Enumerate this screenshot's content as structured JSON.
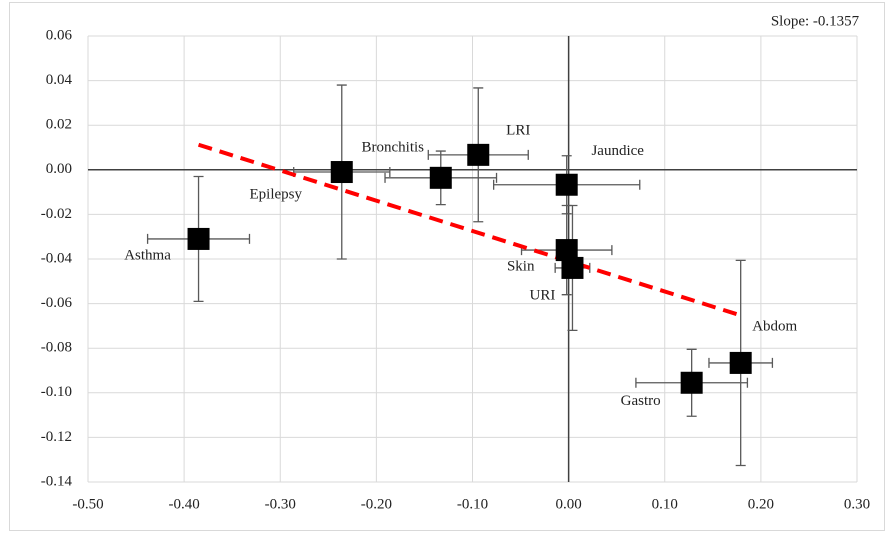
{
  "chart_data": {
    "type": "scatter",
    "annotation": "Slope: -0.1357",
    "trendline": {
      "slope": -0.1357,
      "intercept": -0.041,
      "x": [
        -0.385,
        0.18
      ],
      "color": "#ff0000"
    },
    "series": [
      {
        "color": "#000000",
        "labels": [
          "Asthma",
          "Epilepsy",
          "Bronchitis",
          "LRI",
          "Jaundice",
          "Skin",
          "URI",
          "Abdom",
          "Gastro"
        ],
        "x": [
          -0.385,
          -0.236,
          -0.133,
          -0.094,
          -0.002,
          -0.002,
          0.004,
          0.179,
          0.128
        ],
        "values": [
          -0.031,
          -0.001,
          -0.0036,
          0.0067,
          -0.0067,
          -0.036,
          -0.044,
          -0.0866,
          -0.0955
        ],
        "xerr": [
          0.053,
          0.05,
          0.058,
          0.052,
          0.076,
          0.047,
          0.018,
          0.033,
          0.058
        ],
        "yerr": [
          0.028,
          0.039,
          0.012,
          0.03,
          0.013,
          0.02,
          0.028,
          0.046,
          0.015
        ]
      }
    ],
    "xlim": [
      -0.5,
      0.3
    ],
    "ylim": [
      -0.14,
      0.06
    ],
    "xticks": [
      {
        "value": -0.5,
        "label": "-0.50"
      },
      {
        "value": -0.4,
        "label": "-0.40"
      },
      {
        "value": -0.3,
        "label": "-0.30"
      },
      {
        "value": -0.2,
        "label": "-0.20"
      },
      {
        "value": -0.1,
        "label": "-0.10"
      },
      {
        "value": 0,
        "label": "0.00"
      },
      {
        "value": 0.1,
        "label": "0.10"
      },
      {
        "value": 0.2,
        "label": "0.20"
      },
      {
        "value": 0.3,
        "label": "0.30"
      }
    ],
    "yticks": [
      {
        "value": 0.06,
        "label": "0.06"
      },
      {
        "value": 0.04,
        "label": "0.04"
      },
      {
        "value": 0.02,
        "label": "0.02"
      },
      {
        "value": 0,
        "label": "0.00"
      },
      {
        "value": -0.02,
        "label": "-0.02"
      },
      {
        "value": -0.04,
        "label": "-0.04"
      },
      {
        "value": -0.06,
        "label": "-0.06"
      },
      {
        "value": -0.08,
        "label": "-0.08"
      },
      {
        "value": -0.1,
        "label": "-0.10"
      },
      {
        "value": -0.12,
        "label": "-0.12"
      },
      {
        "value": -0.14,
        "label": "-0.14"
      }
    ],
    "grid": true
  }
}
